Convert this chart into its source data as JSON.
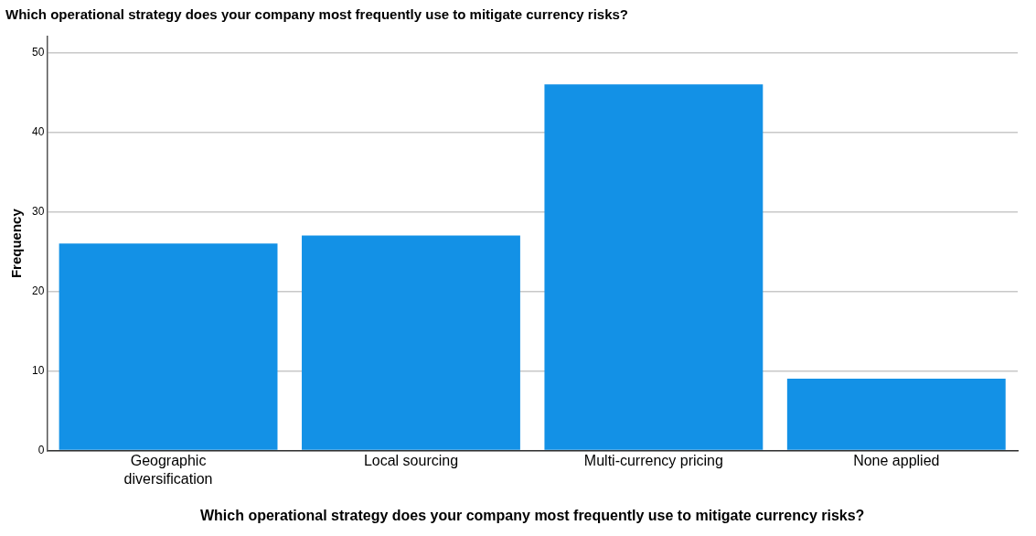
{
  "chart_data": {
    "type": "bar",
    "title": "Which operational strategy does your company most frequently use to mitigate currency risks?",
    "xlabel": "Which operational strategy does your company most frequently use to mitigate currency risks?",
    "ylabel": "Frequency",
    "categories": [
      "Geographic diversification",
      "Local sourcing",
      "Multi-currency pricing",
      "None applied"
    ],
    "values": [
      26,
      27,
      46,
      9
    ],
    "color": "#1391e6",
    "ylim": [
      0,
      52
    ],
    "yticks": [
      0,
      10,
      20,
      30,
      40,
      50
    ],
    "grid": "y",
    "legend": false
  }
}
